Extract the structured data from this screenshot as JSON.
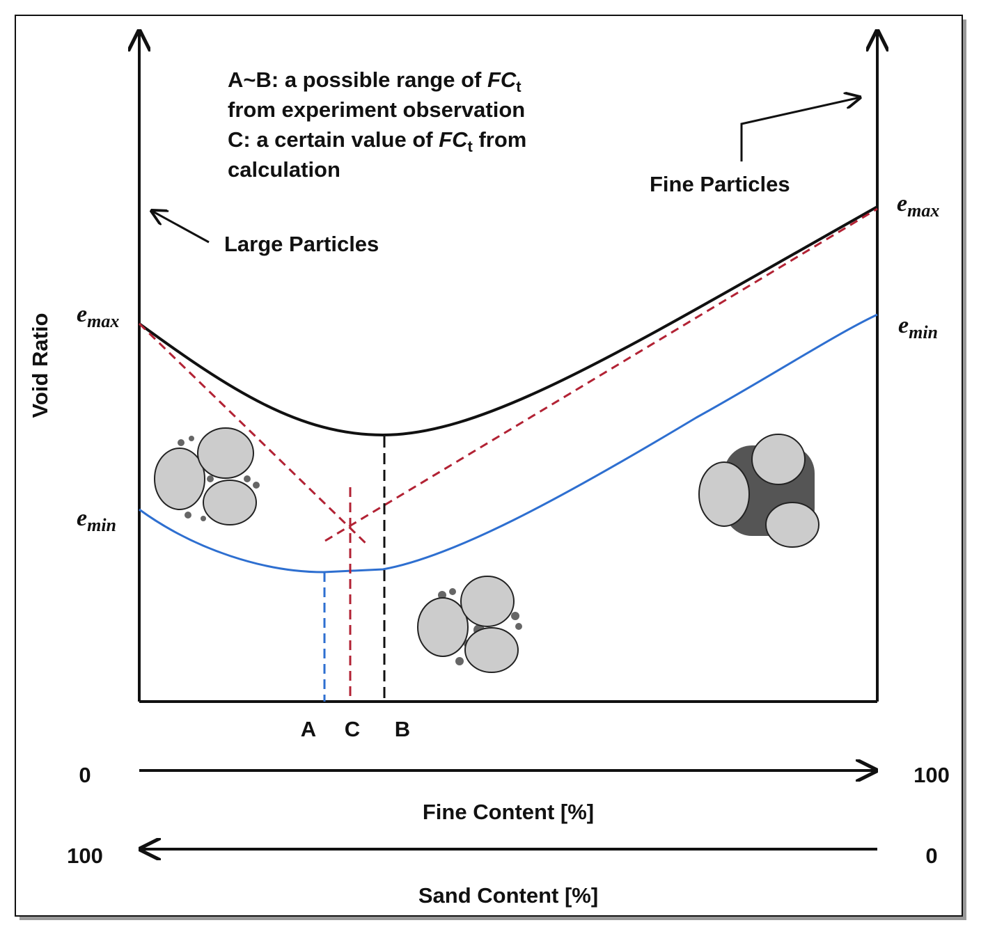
{
  "y_axis_label": "Void Ratio",
  "note": {
    "line1": [
      "A~B: a possible range of ",
      "FC",
      "t"
    ],
    "line2": "from experiment observation",
    "line3": [
      "C: a certain value of ",
      "FC",
      "t",
      " from"
    ],
    "line4": "calculation"
  },
  "labels": {
    "fine_particles": "Fine Particles",
    "large_particles": "Large Particles"
  },
  "left_axis": {
    "e_max": [
      "e",
      "max"
    ],
    "e_min": [
      "e",
      "min"
    ]
  },
  "right_axis": {
    "e_max": [
      "e",
      "max"
    ],
    "e_min": [
      "e",
      "min"
    ]
  },
  "points": [
    "A",
    "C",
    "B"
  ],
  "fine_axis": {
    "start": "0",
    "end": "100",
    "title": "Fine Content [%]"
  },
  "sand_axis": {
    "start": "100",
    "end": "0",
    "title": "Sand Content [%]"
  }
}
